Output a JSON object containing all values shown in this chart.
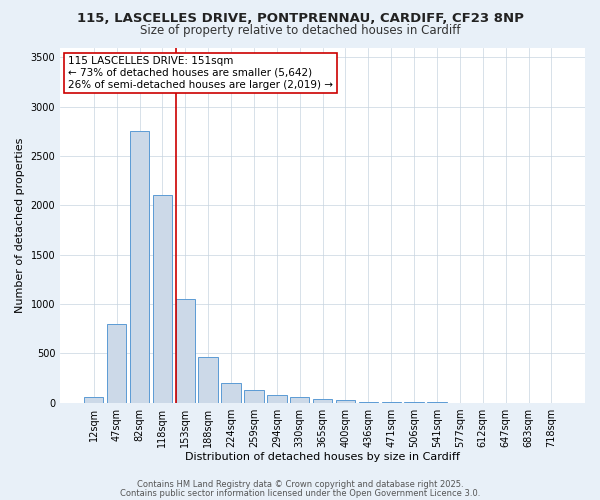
{
  "title_line1": "115, LASCELLES DRIVE, PONTPRENNAU, CARDIFF, CF23 8NP",
  "title_line2": "Size of property relative to detached houses in Cardiff",
  "categories": [
    "12sqm",
    "47sqm",
    "82sqm",
    "118sqm",
    "153sqm",
    "188sqm",
    "224sqm",
    "259sqm",
    "294sqm",
    "330sqm",
    "365sqm",
    "400sqm",
    "436sqm",
    "471sqm",
    "506sqm",
    "541sqm",
    "577sqm",
    "612sqm",
    "647sqm",
    "683sqm",
    "718sqm"
  ],
  "values": [
    55,
    800,
    2750,
    2100,
    1050,
    460,
    200,
    130,
    80,
    60,
    40,
    30,
    8,
    5,
    2,
    1,
    0,
    0,
    0,
    0,
    0
  ],
  "bar_color": "#ccd9e8",
  "bar_edge_color": "#5b9bd5",
  "vline_color": "#cc0000",
  "vline_label": "115 LASCELLES DRIVE: 151sqm",
  "annotation_line2": "← 73% of detached houses are smaller (5,642)",
  "annotation_line3": "26% of semi-detached houses are larger (2,019) →",
  "annotation_box_color": "#cc0000",
  "ylabel": "Number of detached properties",
  "xlabel": "Distribution of detached houses by size in Cardiff",
  "ylim": [
    0,
    3600
  ],
  "yticks": [
    0,
    500,
    1000,
    1500,
    2000,
    2500,
    3000,
    3500
  ],
  "footer_line1": "Contains HM Land Registry data © Crown copyright and database right 2025.",
  "footer_line2": "Contains public sector information licensed under the Open Government Licence 3.0.",
  "background_color": "#e8f0f8",
  "plot_background": "#ffffff",
  "grid_color": "#c8d4e0",
  "title_fontsize": 9.5,
  "subtitle_fontsize": 8.5,
  "axis_label_fontsize": 8,
  "tick_fontsize": 7,
  "annotation_fontsize": 7.5,
  "footer_fontsize": 6
}
